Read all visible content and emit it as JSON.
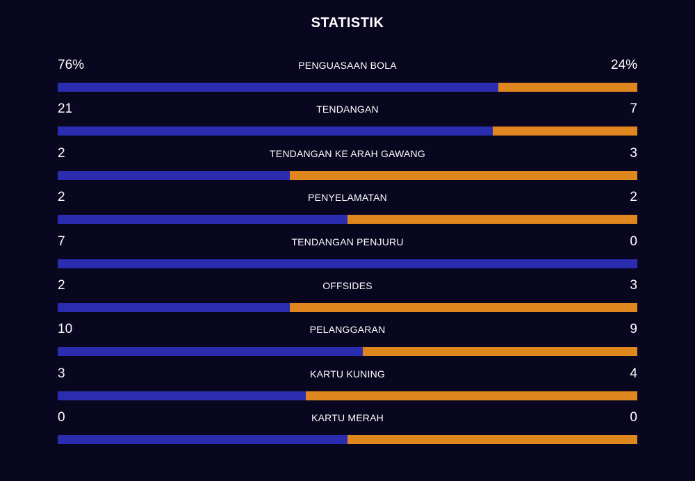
{
  "title": "STATISTIK",
  "colors": {
    "background": "#08071f",
    "home": "#2b2db0",
    "away": "#e0861e",
    "text": "#ffffff"
  },
  "stats": [
    {
      "label": "PENGUASAAN BOLA",
      "home": "76%",
      "away": "24%",
      "home_value": 76,
      "away_value": 24
    },
    {
      "label": "TENDANGAN",
      "home": "21",
      "away": "7",
      "home_value": 21,
      "away_value": 7
    },
    {
      "label": "TENDANGAN KE ARAH GAWANG",
      "home": "2",
      "away": "3",
      "home_value": 2,
      "away_value": 3
    },
    {
      "label": "PENYELAMATAN",
      "home": "2",
      "away": "2",
      "home_value": 2,
      "away_value": 2
    },
    {
      "label": "TENDANGAN PENJURU",
      "home": "7",
      "away": "0",
      "home_value": 7,
      "away_value": 0
    },
    {
      "label": "OFFSIDES",
      "home": "2",
      "away": "3",
      "home_value": 2,
      "away_value": 3
    },
    {
      "label": "PELANGGARAN",
      "home": "10",
      "away": "9",
      "home_value": 10,
      "away_value": 9
    },
    {
      "label": "KARTU KUNING",
      "home": "3",
      "away": "4",
      "home_value": 3,
      "away_value": 4
    },
    {
      "label": "KARTU MERAH",
      "home": "0",
      "away": "0",
      "home_value": 0,
      "away_value": 0
    }
  ]
}
